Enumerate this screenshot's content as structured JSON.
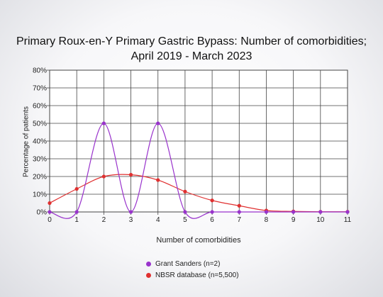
{
  "chart_data": {
    "type": "line",
    "title_lines": [
      "Primary Roux-en-Y Primary Gastric Bypass: Number of comorbidities;",
      "April 2019 - March 2023"
    ],
    "xlabel": "Number of comorbidities",
    "ylabel": "Percentage of patients",
    "x": [
      0,
      1,
      2,
      3,
      4,
      5,
      6,
      7,
      8,
      9,
      10,
      11
    ],
    "xlim": [
      0,
      11
    ],
    "ylim": [
      0,
      80
    ],
    "yticks": [
      "0%",
      "10%",
      "20%",
      "30%",
      "40%",
      "50%",
      "60%",
      "70%",
      "80%"
    ],
    "grid": true,
    "legend_position": "bottom",
    "series": [
      {
        "name": "Grant Sanders (n=2)",
        "color": "#9933cc",
        "values": [
          0,
          0,
          50,
          0,
          50,
          0,
          0,
          0,
          0,
          0,
          0,
          0
        ]
      },
      {
        "name": "NBSR database (n=5,500)",
        "color": "#e03030",
        "values": [
          5,
          13,
          20,
          21,
          18,
          11.5,
          6.5,
          3.5,
          0.8,
          0.3,
          0.1,
          0.1
        ]
      }
    ]
  }
}
